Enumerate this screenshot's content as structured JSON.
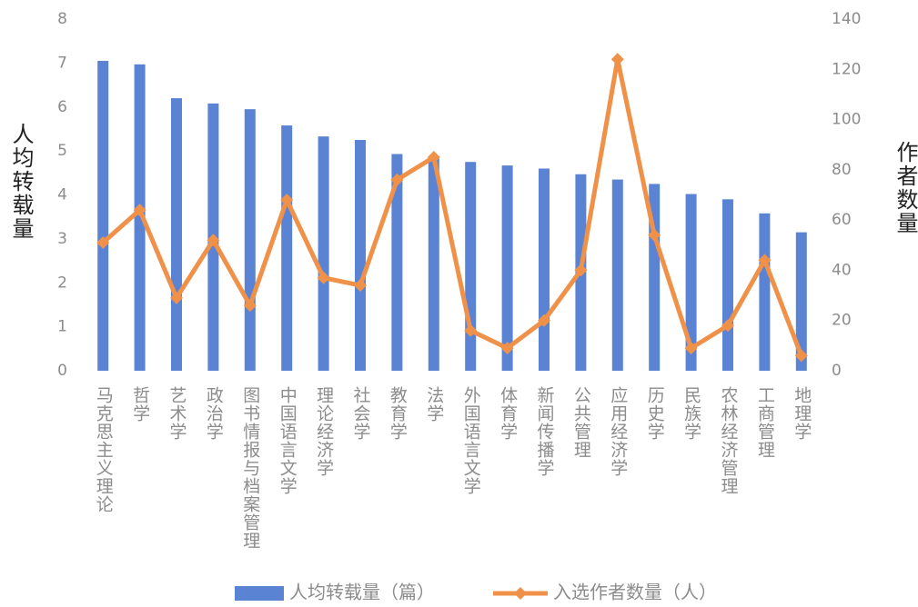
{
  "chart_data": {
    "type": "bar",
    "categories": [
      "马克思主义理论",
      "哲学",
      "艺术学",
      "政治学",
      "图书情报与档案管理",
      "中国语言文学",
      "理论经济学",
      "社会学",
      "教育学",
      "法学",
      "外国语言文学",
      "体育学",
      "新闻传播学",
      "公共管理",
      "应用经济学",
      "历史学",
      "民族学",
      "农林经济管理",
      "工商管理",
      "地理学"
    ],
    "series": [
      {
        "name": "人均转载量（篇）",
        "type": "bar",
        "color": "#5b83d3",
        "values": [
          7.05,
          6.97,
          6.2,
          6.08,
          5.95,
          5.58,
          5.33,
          5.25,
          4.93,
          4.85,
          4.75,
          4.67,
          4.6,
          4.47,
          4.35,
          4.25,
          4.02,
          3.9,
          3.58,
          3.15
        ]
      },
      {
        "name": "入选作者数量（人）",
        "type": "line",
        "axis": "y2",
        "color": "#f0914a",
        "values": [
          51,
          64,
          29,
          52,
          26,
          68,
          37,
          34,
          76,
          85,
          16,
          9,
          20,
          40,
          124,
          54,
          9,
          18,
          44,
          6
        ]
      }
    ],
    "ylabel": "人均转载量",
    "y2label": "作者数量",
    "ylim": [
      0,
      8
    ],
    "yticks": [
      0,
      1,
      2,
      3,
      4,
      5,
      6,
      7,
      8
    ],
    "y2lim": [
      0,
      140
    ],
    "y2ticks": [
      0,
      20,
      40,
      60,
      80,
      100,
      120,
      140
    ],
    "grid": false
  }
}
